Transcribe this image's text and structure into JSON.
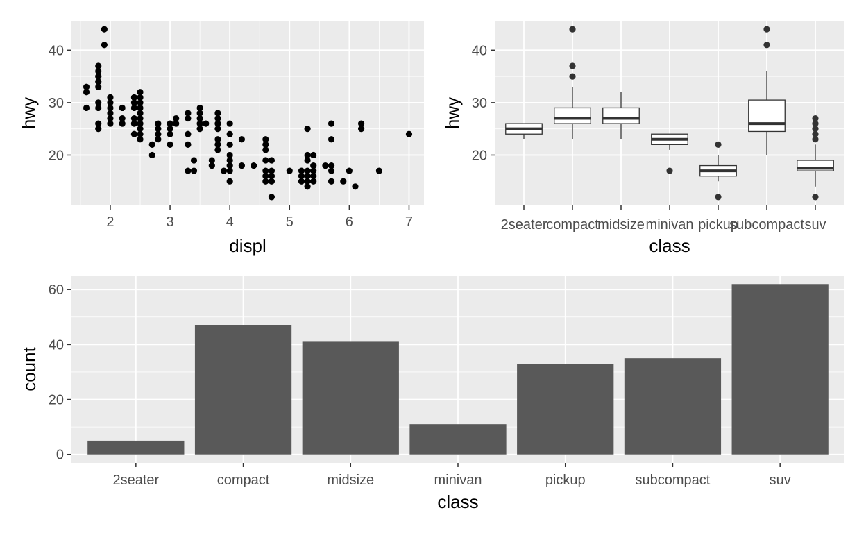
{
  "colors": {
    "panel_background": "#ebebeb",
    "major_grid": "#ffffff",
    "minor_grid": "#f5f5f5",
    "point": "#000000",
    "bar_fill": "#595959",
    "box_fill": "#ffffff",
    "box_line": "#333333",
    "outlier": "#333333",
    "tick_text": "#4d4d4d",
    "axis_title": "#000000",
    "tick_mark": "#333333"
  },
  "chart_data": [
    {
      "type": "scatter",
      "xlabel": "displ",
      "ylabel": "hwy",
      "xlim": [
        1.35,
        7.25
      ],
      "ylim": [
        10.4,
        45.6
      ],
      "x_ticks": [
        2,
        3,
        4,
        5,
        6,
        7
      ],
      "y_ticks": [
        20,
        30,
        40
      ],
      "grid": true,
      "points": [
        [
          1.6,
          33
        ],
        [
          1.6,
          32
        ],
        [
          1.6,
          29
        ],
        [
          1.8,
          37
        ],
        [
          1.8,
          36
        ],
        [
          1.8,
          35
        ],
        [
          1.8,
          34
        ],
        [
          1.8,
          33
        ],
        [
          1.8,
          30
        ],
        [
          1.8,
          29
        ],
        [
          1.8,
          26
        ],
        [
          1.8,
          25
        ],
        [
          1.9,
          44
        ],
        [
          1.9,
          41
        ],
        [
          2.0,
          31
        ],
        [
          2.0,
          30
        ],
        [
          2.0,
          29
        ],
        [
          2.0,
          28
        ],
        [
          2.0,
          27
        ],
        [
          2.0,
          26
        ],
        [
          2.2,
          29
        ],
        [
          2.2,
          27
        ],
        [
          2.2,
          26
        ],
        [
          2.4,
          31
        ],
        [
          2.4,
          30
        ],
        [
          2.4,
          29
        ],
        [
          2.4,
          27
        ],
        [
          2.4,
          26
        ],
        [
          2.4,
          24
        ],
        [
          2.5,
          32
        ],
        [
          2.5,
          31
        ],
        [
          2.5,
          30
        ],
        [
          2.5,
          29
        ],
        [
          2.5,
          28
        ],
        [
          2.5,
          27
        ],
        [
          2.5,
          26
        ],
        [
          2.5,
          25
        ],
        [
          2.5,
          24
        ],
        [
          2.5,
          23
        ],
        [
          2.7,
          22
        ],
        [
          2.7,
          20
        ],
        [
          2.8,
          26
        ],
        [
          2.8,
          25
        ],
        [
          2.8,
          24
        ],
        [
          2.8,
          23
        ],
        [
          3.0,
          26
        ],
        [
          3.0,
          25
        ],
        [
          3.0,
          24
        ],
        [
          3.0,
          22
        ],
        [
          3.1,
          27
        ],
        [
          3.1,
          26
        ],
        [
          3.3,
          28
        ],
        [
          3.3,
          27
        ],
        [
          3.3,
          24
        ],
        [
          3.3,
          22
        ],
        [
          3.3,
          17
        ],
        [
          3.4,
          19
        ],
        [
          3.4,
          17
        ],
        [
          3.5,
          29
        ],
        [
          3.5,
          28
        ],
        [
          3.5,
          27
        ],
        [
          3.5,
          26
        ],
        [
          3.5,
          25
        ],
        [
          3.6,
          26
        ],
        [
          3.7,
          19
        ],
        [
          3.7,
          18
        ],
        [
          3.8,
          28
        ],
        [
          3.8,
          27
        ],
        [
          3.8,
          26
        ],
        [
          3.8,
          25
        ],
        [
          3.8,
          23
        ],
        [
          3.8,
          22
        ],
        [
          3.8,
          21
        ],
        [
          3.9,
          17
        ],
        [
          4.0,
          26
        ],
        [
          4.0,
          24
        ],
        [
          4.0,
          22
        ],
        [
          4.0,
          20
        ],
        [
          4.0,
          19
        ],
        [
          4.0,
          18
        ],
        [
          4.0,
          17
        ],
        [
          4.0,
          15
        ],
        [
          4.2,
          23
        ],
        [
          4.2,
          18
        ],
        [
          4.4,
          18
        ],
        [
          4.6,
          23
        ],
        [
          4.6,
          22
        ],
        [
          4.6,
          21
        ],
        [
          4.6,
          19
        ],
        [
          4.6,
          17
        ],
        [
          4.6,
          16
        ],
        [
          4.6,
          15
        ],
        [
          4.7,
          19
        ],
        [
          4.7,
          17
        ],
        [
          4.7,
          16
        ],
        [
          4.7,
          15
        ],
        [
          4.7,
          12
        ],
        [
          5.0,
          17
        ],
        [
          5.2,
          17
        ],
        [
          5.2,
          16
        ],
        [
          5.2,
          15
        ],
        [
          5.3,
          25
        ],
        [
          5.3,
          20
        ],
        [
          5.3,
          19
        ],
        [
          5.3,
          17
        ],
        [
          5.3,
          16
        ],
        [
          5.3,
          15
        ],
        [
          5.3,
          14
        ],
        [
          5.4,
          20
        ],
        [
          5.4,
          18
        ],
        [
          5.4,
          17
        ],
        [
          5.4,
          16
        ],
        [
          5.4,
          15
        ],
        [
          5.6,
          18
        ],
        [
          5.7,
          26
        ],
        [
          5.7,
          23
        ],
        [
          5.7,
          18
        ],
        [
          5.7,
          17
        ],
        [
          5.7,
          15
        ],
        [
          5.9,
          15
        ],
        [
          6.0,
          17
        ],
        [
          6.1,
          14
        ],
        [
          6.2,
          26
        ],
        [
          6.2,
          25
        ],
        [
          6.5,
          17
        ],
        [
          7.0,
          24
        ]
      ]
    },
    {
      "type": "boxplot",
      "xlabel": "class",
      "ylabel": "hwy",
      "ylim": [
        10.4,
        45.6
      ],
      "y_ticks": [
        20,
        30,
        40
      ],
      "grid": true,
      "categories": [
        "2seater",
        "compact",
        "midsize",
        "minivan",
        "pickup",
        "subcompact",
        "suv"
      ],
      "boxes": [
        {
          "q1": 24,
          "median": 25,
          "q3": 26,
          "whisker_low": 23,
          "whisker_high": 26,
          "outliers": []
        },
        {
          "q1": 26,
          "median": 27,
          "q3": 29,
          "whisker_low": 23,
          "whisker_high": 33,
          "outliers": [
            35,
            37,
            44
          ]
        },
        {
          "q1": 26,
          "median": 27,
          "q3": 29,
          "whisker_low": 23,
          "whisker_high": 32,
          "outliers": []
        },
        {
          "q1": 22,
          "median": 23,
          "q3": 24,
          "whisker_low": 21,
          "whisker_high": 24,
          "outliers": [
            17
          ]
        },
        {
          "q1": 16,
          "median": 17,
          "q3": 18,
          "whisker_low": 15,
          "whisker_high": 20,
          "outliers": [
            12,
            22
          ]
        },
        {
          "q1": 24.5,
          "median": 26,
          "q3": 30.5,
          "whisker_low": 20,
          "whisker_high": 36,
          "outliers": [
            41,
            44
          ]
        },
        {
          "q1": 17,
          "median": 17.5,
          "q3": 19,
          "whisker_low": 14,
          "whisker_high": 22,
          "outliers": [
            12,
            23,
            24,
            25,
            26,
            27
          ]
        }
      ]
    },
    {
      "type": "bar",
      "xlabel": "class",
      "ylabel": "count",
      "ylim": [
        -3.1,
        65.1
      ],
      "y_ticks": [
        0,
        20,
        40,
        60
      ],
      "grid": true,
      "categories": [
        "2seater",
        "compact",
        "midsize",
        "minivan",
        "pickup",
        "subcompact",
        "suv"
      ],
      "values": [
        5,
        47,
        41,
        11,
        33,
        35,
        62
      ]
    }
  ]
}
